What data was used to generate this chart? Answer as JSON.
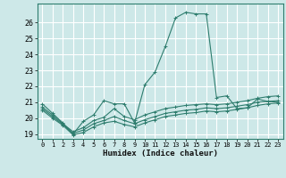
{
  "xlabel": "Humidex (Indice chaleur)",
  "background_color": "#cde8e8",
  "grid_color": "#ffffff",
  "line_color": "#2e7d6e",
  "xlim": [
    -0.5,
    23.5
  ],
  "ylim": [
    18.7,
    27.2
  ],
  "yticks": [
    19,
    20,
    21,
    22,
    23,
    24,
    25,
    26
  ],
  "xticks": [
    0,
    1,
    2,
    3,
    4,
    5,
    6,
    7,
    8,
    9,
    10,
    11,
    12,
    13,
    14,
    15,
    16,
    17,
    18,
    19,
    20,
    21,
    22,
    23
  ],
  "xtick_labels": [
    "0",
    "1",
    "2",
    "3",
    "4",
    "5",
    "6",
    "7",
    "8",
    "9",
    "10",
    "11",
    "12",
    "13",
    "14",
    "15",
    "16",
    "17",
    "18",
    "19",
    "20",
    "21",
    "22",
    "23"
  ],
  "lines": [
    {
      "x": [
        0,
        1,
        2,
        3,
        4,
        5,
        6,
        7,
        8,
        9,
        10,
        11,
        12,
        13,
        14,
        15,
        16,
        17,
        18,
        19,
        20,
        21,
        22,
        23
      ],
      "y": [
        20.9,
        20.3,
        19.7,
        19.0,
        19.8,
        20.2,
        21.1,
        20.9,
        20.9,
        19.7,
        22.1,
        22.9,
        24.5,
        26.3,
        26.65,
        26.55,
        26.55,
        21.3,
        21.4,
        20.6,
        20.65,
        21.2,
        21.05,
        21.0
      ]
    },
    {
      "x": [
        0,
        1,
        2,
        3,
        4,
        5,
        6,
        7,
        8,
        9,
        10,
        11,
        12,
        13,
        14,
        15,
        16,
        17,
        18,
        19,
        20,
        21,
        22,
        23
      ],
      "y": [
        20.7,
        20.2,
        19.65,
        19.15,
        19.4,
        19.85,
        20.05,
        20.6,
        20.1,
        19.9,
        20.2,
        20.4,
        20.6,
        20.7,
        20.8,
        20.85,
        20.9,
        20.85,
        20.9,
        21.0,
        21.1,
        21.25,
        21.35,
        21.4
      ]
    },
    {
      "x": [
        0,
        1,
        2,
        3,
        4,
        5,
        6,
        7,
        8,
        9,
        10,
        11,
        12,
        13,
        14,
        15,
        16,
        17,
        18,
        19,
        20,
        21,
        22,
        23
      ],
      "y": [
        20.6,
        20.1,
        19.6,
        19.05,
        19.25,
        19.65,
        19.85,
        20.1,
        19.85,
        19.65,
        19.9,
        20.1,
        20.3,
        20.4,
        20.5,
        20.55,
        20.65,
        20.6,
        20.65,
        20.75,
        20.85,
        21.0,
        21.05,
        21.1
      ]
    },
    {
      "x": [
        0,
        1,
        2,
        3,
        4,
        5,
        6,
        7,
        8,
        9,
        10,
        11,
        12,
        13,
        14,
        15,
        16,
        17,
        18,
        19,
        20,
        21,
        22,
        23
      ],
      "y": [
        20.5,
        20.0,
        19.55,
        18.95,
        19.1,
        19.45,
        19.7,
        19.8,
        19.6,
        19.45,
        19.7,
        19.9,
        20.1,
        20.2,
        20.3,
        20.35,
        20.45,
        20.4,
        20.45,
        20.55,
        20.65,
        20.8,
        20.9,
        20.95
      ]
    }
  ]
}
